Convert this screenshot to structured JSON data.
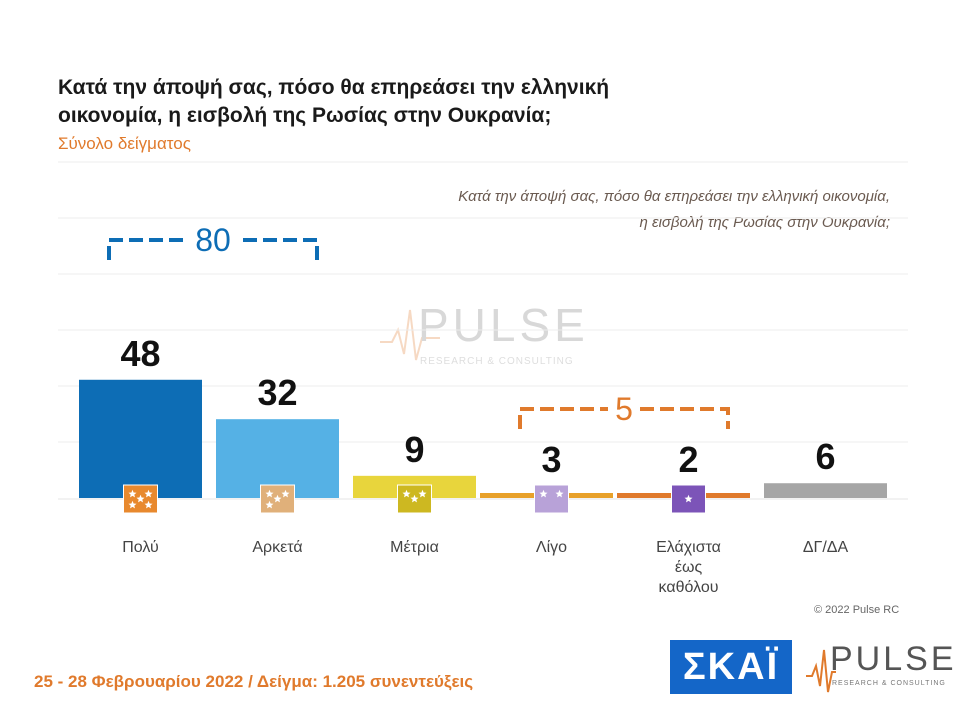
{
  "header": {
    "title": "Κατά την άποψή σας, πόσο θα επηρεάσει την ελληνική οικονομία, η εισβολή της Ρωσίας στην Ουκρανία;",
    "subtitle": "Σύνολο δείγματος",
    "note_line1": "Κατά την άποψή σας, πόσο θα επηρεάσει την ελληνική οικονομία,",
    "note_line2": "η εισβολή της Ρωσίας στην Ουκρανία;"
  },
  "chart_data": {
    "type": "bar",
    "categories": [
      "Πολύ",
      "Αρκετά",
      "Μέτρια",
      "Λίγο",
      "Ελάχιστα έως καθόλου",
      "ΔΓ/ΔΑ"
    ],
    "category_lines": [
      [
        "Πολύ"
      ],
      [
        "Αρκετά"
      ],
      [
        "Μέτρια"
      ],
      [
        "Λίγο"
      ],
      [
        "Ελάχιστα",
        "έως",
        "καθόλου"
      ],
      [
        "ΔΓ/ΔΑ"
      ]
    ],
    "values": [
      48,
      32,
      9,
      3,
      2,
      6
    ],
    "data_labels": [
      "48",
      "32",
      "9",
      "3",
      "2",
      "6"
    ],
    "colors": [
      "#0d6db5",
      "#55b1e5",
      "#e8d53c",
      "#e8a12a",
      "#e07a2c",
      "#a6a6a6"
    ],
    "icon_colors": [
      "#e8892e",
      "#e0b07a",
      "#cdb821",
      "#b8a2d8",
      "#7c54b8",
      ""
    ],
    "icon_stars": [
      5,
      4,
      3,
      2,
      1,
      0
    ],
    "ylim": [
      0,
      54
    ],
    "grid": true,
    "brackets": [
      {
        "label": "80",
        "from": 0,
        "to": 1,
        "color": "#0d6db5"
      },
      {
        "label": "5",
        "from": 3,
        "to": 4,
        "color": "#e07a2c"
      }
    ]
  },
  "watermark": {
    "word": "PULSE",
    "sub": "RESEARCH & CONSULTING"
  },
  "copyright": "© 2022 Pulse RC",
  "footer": "25 - 28 Φεβρουαρίου 2022 / Δείγμα: 1.205 συνεντεύξεις",
  "logos": {
    "skai": "ΣΚΑΪ",
    "pulse": "PULSE",
    "pulse_sub": "RESEARCH & CONSULTING"
  }
}
